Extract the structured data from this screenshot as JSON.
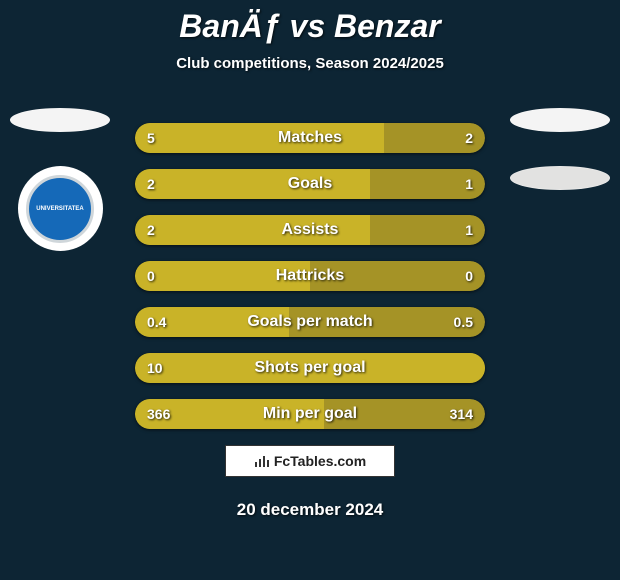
{
  "header": {
    "title": "BanÄƒ vs Benzar",
    "subtitle": "Club competitions, Season 2024/2025"
  },
  "logos": {
    "left": [
      {
        "type": "ellipse",
        "bg": "#f4f4f4"
      },
      {
        "type": "circle",
        "bg": "#ffffff",
        "inner_bg": "#1569b8",
        "inner_text": "UNIVERSITATEA",
        "inner_text_color": "#ffffff"
      }
    ],
    "right": [
      {
        "type": "ellipse",
        "bg": "#f4f4f4"
      },
      {
        "type": "ellipse",
        "bg": "#e2e2e1"
      }
    ]
  },
  "bars": {
    "track_color": "#a59326",
    "fill_color": "#c9b328",
    "text_color": "#ffffff",
    "height": 30,
    "radius": 15,
    "rows": [
      {
        "label": "Matches",
        "left": "5",
        "right": "2",
        "left_pct": 71
      },
      {
        "label": "Goals",
        "left": "2",
        "right": "1",
        "left_pct": 67
      },
      {
        "label": "Assists",
        "left": "2",
        "right": "1",
        "left_pct": 67
      },
      {
        "label": "Hattricks",
        "left": "0",
        "right": "0",
        "left_pct": 50
      },
      {
        "label": "Goals per match",
        "left": "0.4",
        "right": "0.5",
        "left_pct": 44
      },
      {
        "label": "Shots per goal",
        "left": "10",
        "right": "",
        "left_pct": 100
      },
      {
        "label": "Min per goal",
        "left": "366",
        "right": "314",
        "left_pct": 54
      }
    ]
  },
  "footer": {
    "brand": "FcTables.com",
    "date": "20 december 2024"
  }
}
